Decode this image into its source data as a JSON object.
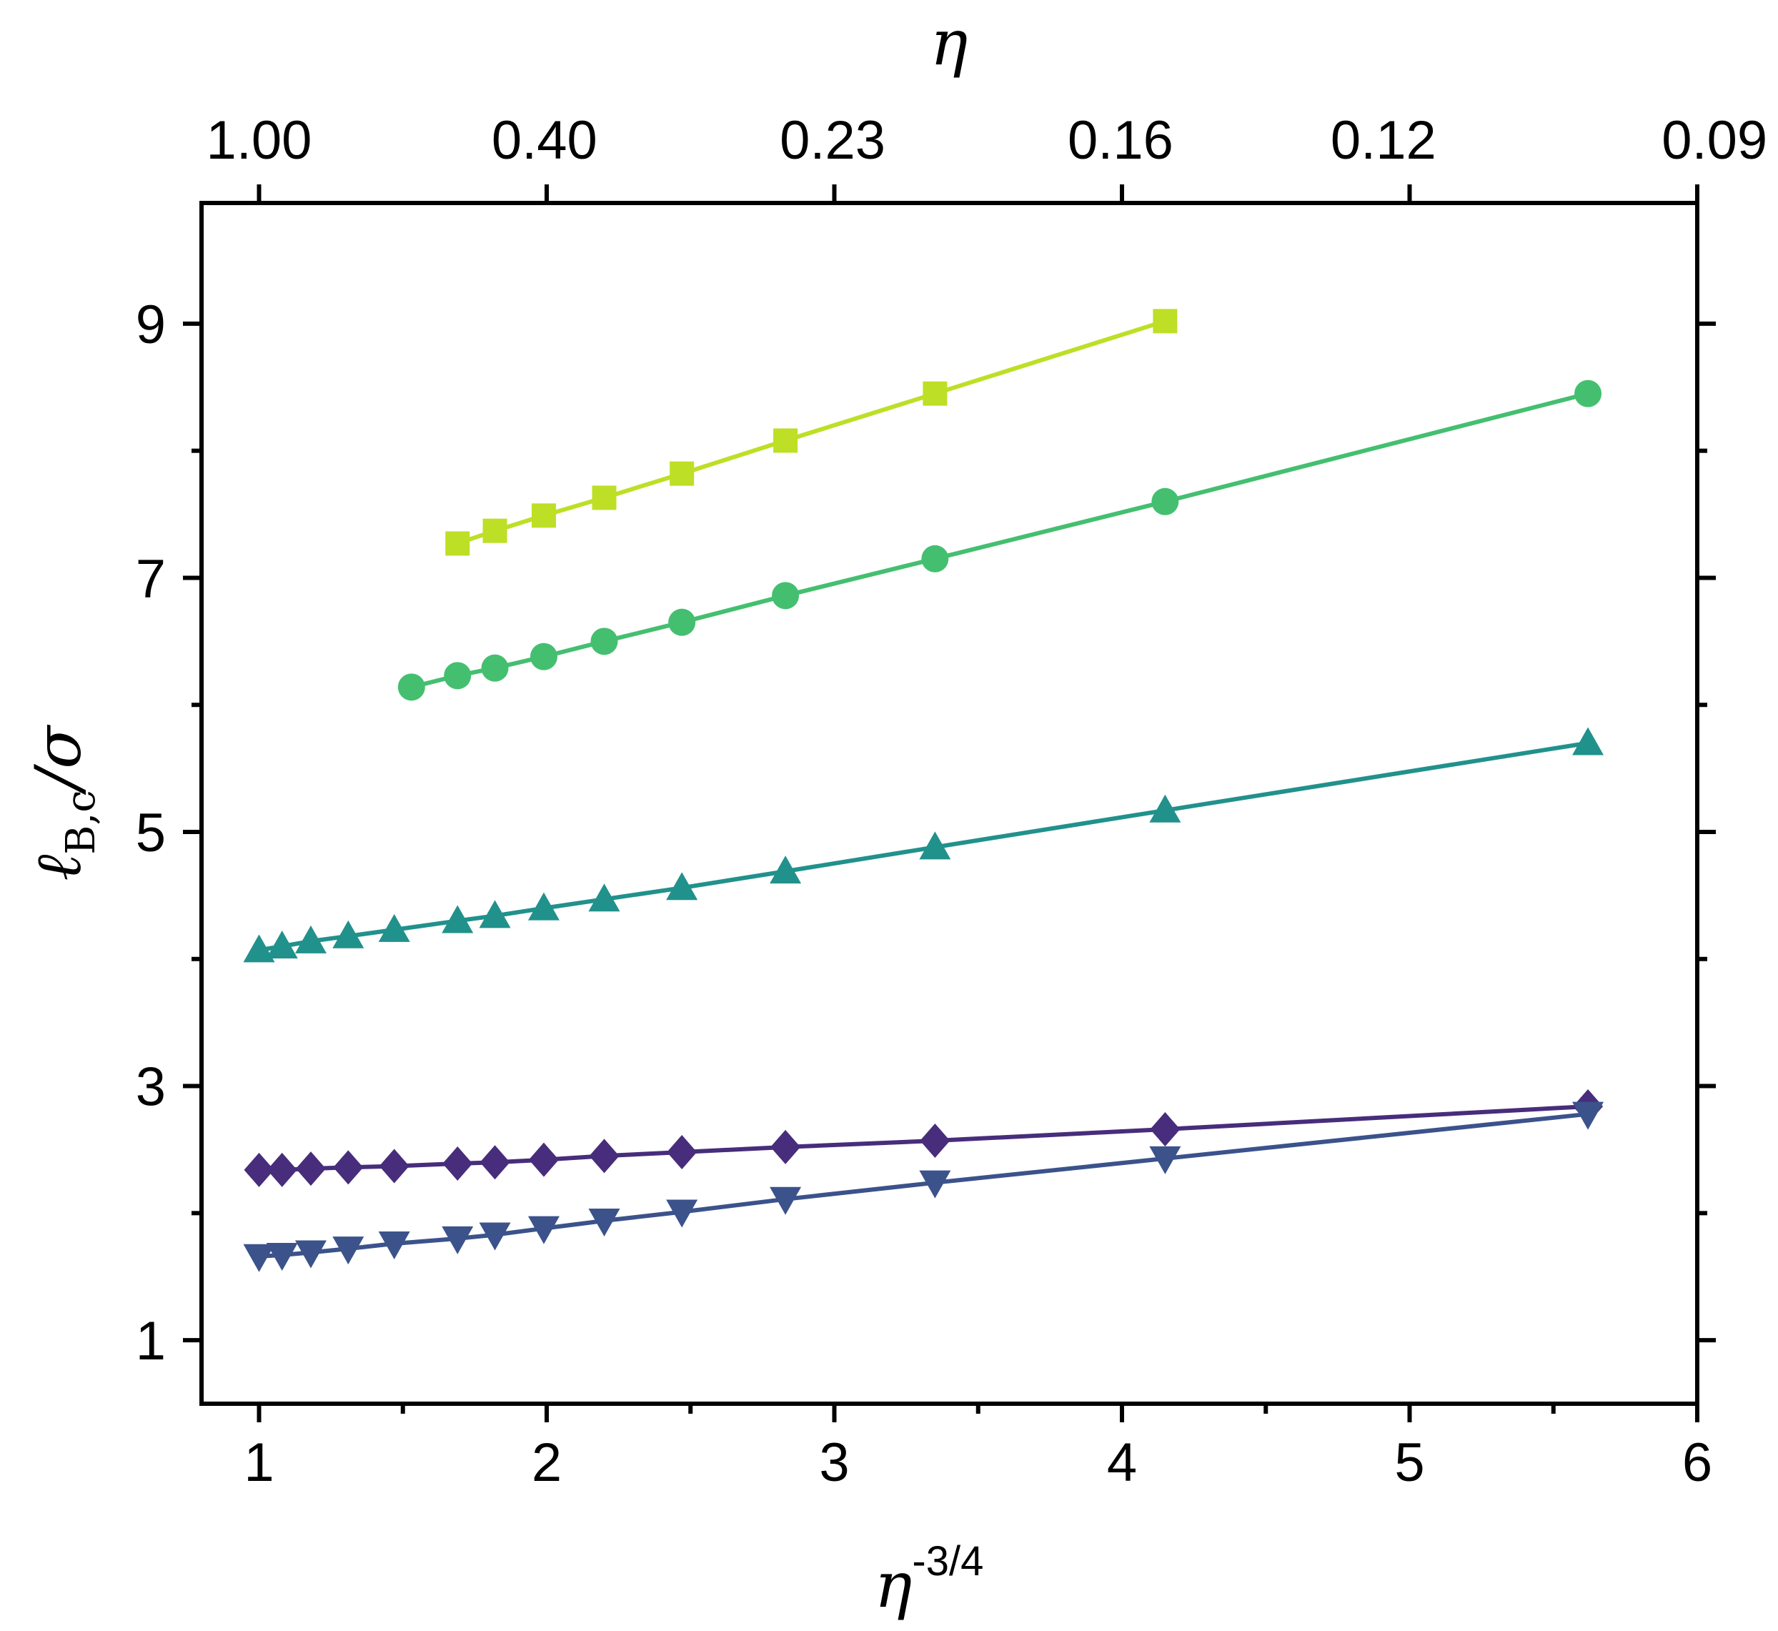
{
  "chart_data": {
    "type": "line",
    "title": "",
    "xlabel_base": "η",
    "xlabel_exp": "-3/4",
    "ylabel_main": "ℓ",
    "ylabel_sub": "B,c",
    "ylabel_tail": "/σ",
    "top_xlabel": "η",
    "xlim": [
      0.8,
      6
    ],
    "ylim": [
      0.5,
      9.95
    ],
    "x_ticks": [
      1,
      2,
      3,
      4,
      5,
      6
    ],
    "x_tick_labels": [
      "1",
      "2",
      "3",
      "4",
      "5",
      "6"
    ],
    "y_ticks": [
      1,
      3,
      5,
      7,
      9
    ],
    "y_tick_labels": [
      "1",
      "3",
      "5",
      "7",
      "9"
    ],
    "top_ticks": [
      1.0,
      1.992,
      2.994,
      3.995,
      4.909,
      6.06
    ],
    "top_tick_labels": [
      "1.00",
      "0.40",
      "0.23",
      "0.16",
      "0.12",
      "0.09"
    ],
    "grid": false,
    "legend": "none",
    "series": [
      {
        "name": "squares",
        "marker": "square",
        "color": "#bddf26",
        "x": [
          1.69,
          1.82,
          1.99,
          2.2,
          2.47,
          2.83,
          3.35,
          4.15
        ],
        "y": [
          7.27,
          7.37,
          7.49,
          7.63,
          7.82,
          8.08,
          8.45,
          9.02
        ]
      },
      {
        "name": "circles",
        "marker": "circle",
        "color": "#44bf70",
        "x": [
          1.53,
          1.69,
          1.82,
          1.99,
          2.2,
          2.47,
          2.83,
          3.35,
          4.15,
          5.62
        ],
        "y": [
          6.14,
          6.23,
          6.29,
          6.38,
          6.5,
          6.65,
          6.86,
          7.15,
          7.6,
          8.45
        ]
      },
      {
        "name": "triangles-up",
        "marker": "triangle-up",
        "color": "#21918c",
        "x": [
          1.0,
          1.08,
          1.18,
          1.31,
          1.47,
          1.69,
          1.82,
          1.99,
          2.2,
          2.47,
          2.83,
          3.35,
          4.15,
          5.62
        ],
        "y": [
          4.07,
          4.1,
          4.14,
          4.18,
          4.23,
          4.3,
          4.34,
          4.4,
          4.47,
          4.56,
          4.69,
          4.88,
          5.17,
          5.7
        ]
      },
      {
        "name": "diamonds",
        "marker": "diamond",
        "color": "#472d7b",
        "x": [
          1.0,
          1.08,
          1.18,
          1.31,
          1.47,
          1.69,
          1.82,
          1.99,
          2.2,
          2.47,
          2.83,
          3.35,
          4.15,
          5.62
        ],
        "y": [
          2.34,
          2.34,
          2.35,
          2.36,
          2.37,
          2.39,
          2.4,
          2.42,
          2.45,
          2.48,
          2.52,
          2.57,
          2.66,
          2.84
        ]
      },
      {
        "name": "triangles-down",
        "marker": "triangle-down",
        "color": "#3b528b",
        "x": [
          1.0,
          1.08,
          1.18,
          1.31,
          1.47,
          1.69,
          1.82,
          1.99,
          2.2,
          2.47,
          2.83,
          3.35,
          4.15,
          5.62
        ],
        "y": [
          1.66,
          1.67,
          1.69,
          1.72,
          1.76,
          1.8,
          1.83,
          1.88,
          1.94,
          2.01,
          2.11,
          2.24,
          2.43,
          2.78
        ]
      }
    ]
  }
}
